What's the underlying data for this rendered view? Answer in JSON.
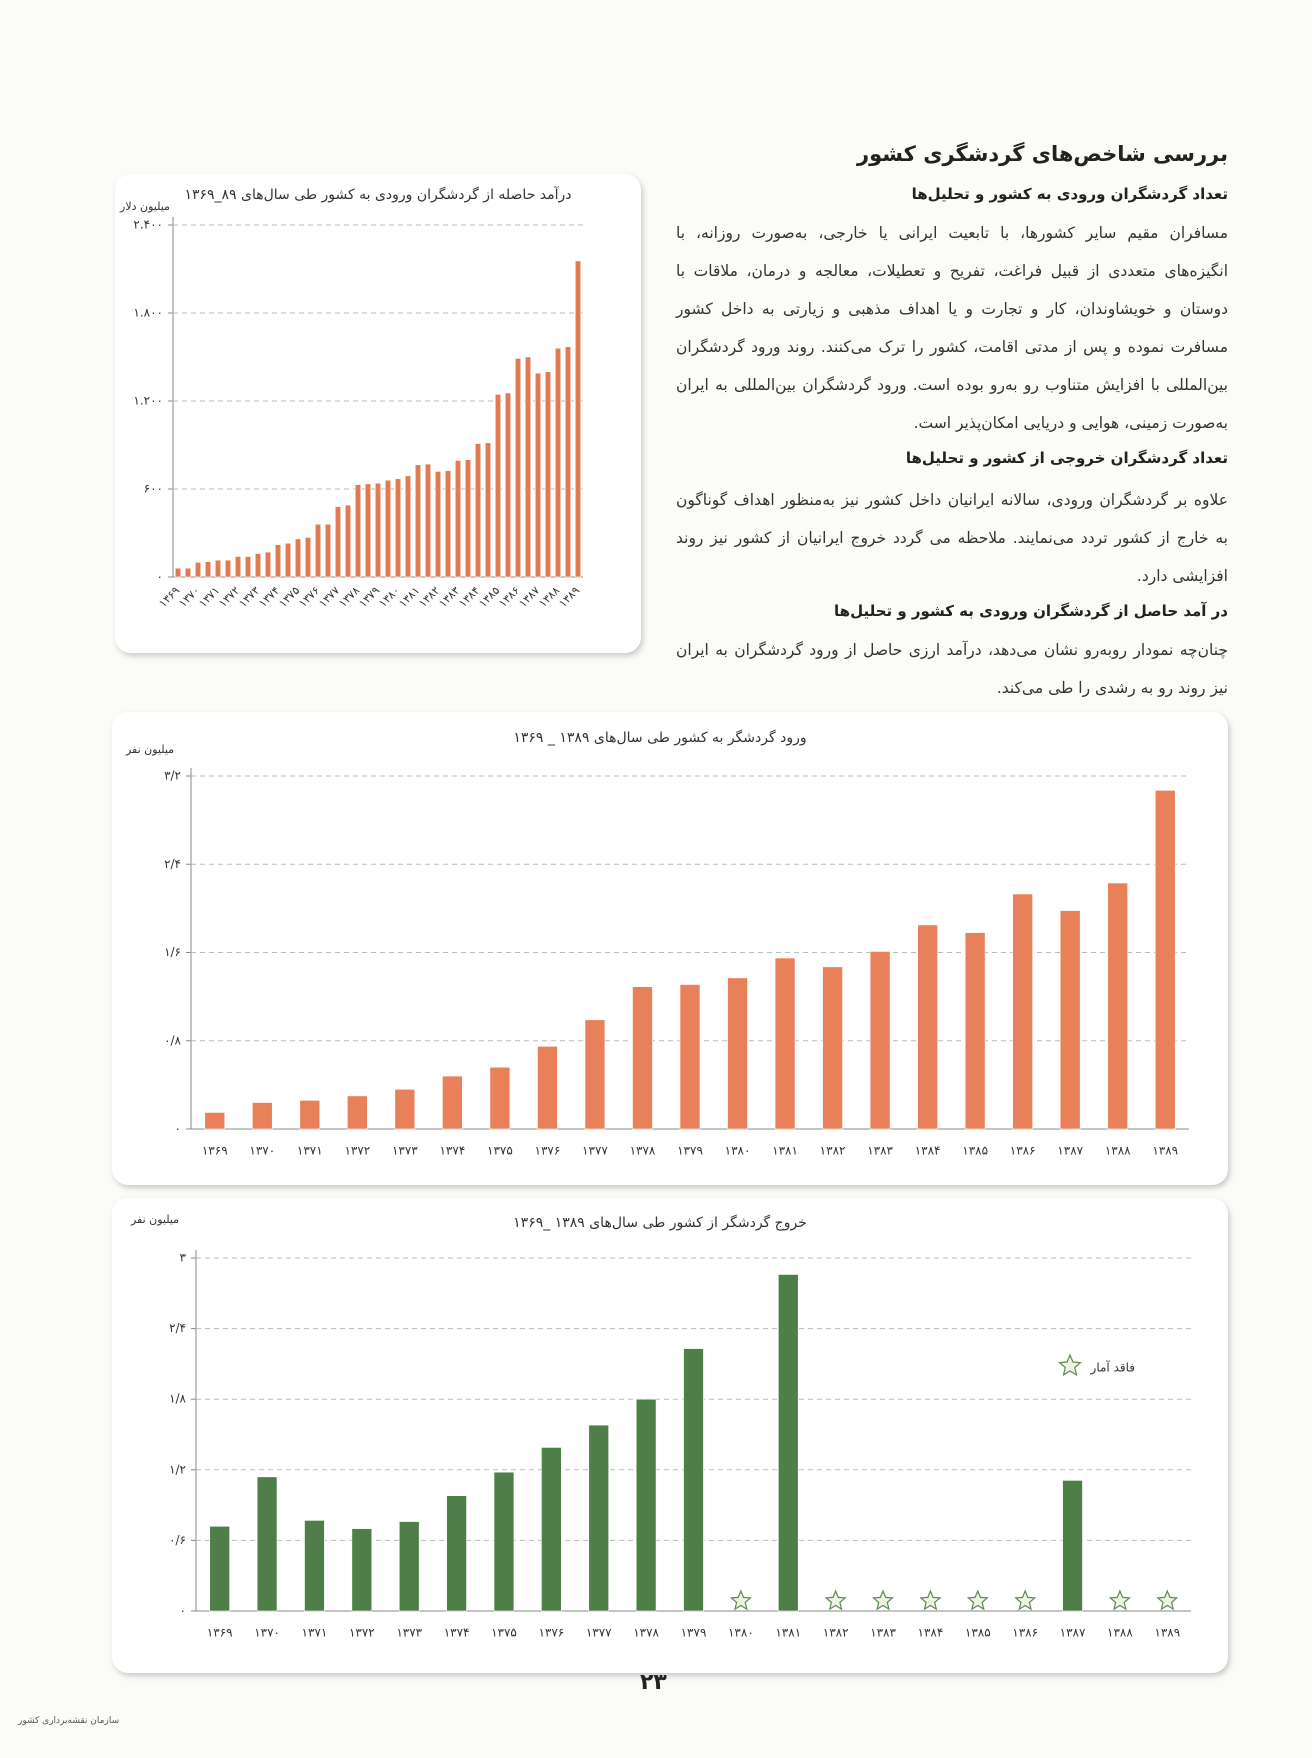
{
  "page": {
    "title": "بررسی شاخص‌های گردشگری کشور",
    "sections": [
      {
        "heading": "تعداد گردشگران ورودی به کشور و تحلیل‌ها",
        "body": "مسافران مقیم سایر کشورها، با تابعیت ایرانی یا خارجی، به‌صورت روزانه، با انگیزه‌های متعددی از قبیل فراغت، تفریح و تعطیلات، معالجه و درمان، ملاقات با دوستان و خویشاوندان، کار و تجارت و یا اهداف مذهبی و زیارتی به داخل کشور مسافرت نموده و پس از مدتی اقامت، کشور را ترک می‌کنند. روند ورود گردشگران بین‌المللی با افزایش متناوب رو به‌رو بوده است. ورود گردشگران بین‌المللی به ایران به‌صورت زمینی، هوایی و دریایی امکان‌پذیر است."
      },
      {
        "heading": "تعداد گردشگران خروجی از کشور و تحلیل‌ها",
        "body": "علاوه بر گردشگران ورودی، سالانه ایرانیان داخل کشور نیز به‌منظور اهداف گوناگون به خارج از کشور تردد می‌نمایند. ملاحظه می گردد خروج ایرانیان از کشور نیز روند افزایشی دارد."
      },
      {
        "heading": "در آمد حاصل از گردشگران ورودی به کشور و تحلیل‌ها",
        "body": "چنان‌چه نمودار روبه‌رو نشان می‌دهد، درآمد ارزی حاصل از ورود گردشگران به ایران نیز روند رو به رشدی را طی می‌کند."
      }
    ],
    "page_number": "۲۳",
    "logo_text": "سازمان نقشه‌برداری کشور"
  },
  "chart_data": [
    {
      "type": "bar",
      "title": "درآمد حاصله از گردشگران ورودی به کشور طی سال‌های ۸۹_۱۳۶۹",
      "y_unit": "میلیون دلار",
      "categories": [
        "۱۳۶۹",
        null,
        "۱۳۷۰",
        null,
        "۱۳۷۱",
        null,
        "۱۳۷۲",
        null,
        "۱۳۷۳",
        null,
        "۱۳۷۴",
        null,
        "۱۳۷۵",
        null,
        "۱۳۷۶",
        null,
        "۱۳۷۷",
        null,
        "۱۳۷۸",
        null,
        "۱۳۷۹",
        null,
        "۱۳۸۰",
        null,
        "۱۳۸۱",
        null,
        "۱۳۸۲",
        null,
        "۱۳۸۳",
        null,
        "۱۳۸۴",
        null,
        "۱۳۸۵",
        null,
        "۱۳۸۶",
        null,
        "۱۳۸۷",
        null,
        "۱۳۸۸",
        null,
        "۱۳۸۹"
      ],
      "values": [
        60,
        60,
        100,
        105,
        115,
        115,
        140,
        140,
        160,
        170,
        220,
        230,
        260,
        270,
        360,
        360,
        480,
        490,
        630,
        635,
        640,
        660,
        670,
        690,
        765,
        770,
        720,
        725,
        795,
        800,
        910,
        915,
        1245,
        1255,
        1490,
        1500,
        1390,
        1400,
        1560,
        1570,
        2155
      ],
      "color": "#e07a50",
      "ylim": [
        0,
        2400
      ],
      "yticks": [
        {
          "value": 0,
          "label": "۰"
        },
        {
          "value": 600,
          "label": "۶۰۰"
        },
        {
          "value": 1200,
          "label": "۱.۲۰۰"
        },
        {
          "value": 1800,
          "label": "۱.۸۰۰"
        },
        {
          "value": 2400,
          "label": "۲.۴۰۰"
        }
      ],
      "grid": true
    },
    {
      "type": "bar",
      "title": "ورود گردشگر به کشور طی سال‌های ۱۳۸۹ _ ۱۳۶۹",
      "y_unit": "میلیون نفر",
      "categories": [
        "۱۳۶۹",
        "۱۳۷۰",
        "۱۳۷۱",
        "۱۳۷۲",
        "۱۳۷۳",
        "۱۳۷۴",
        "۱۳۷۵",
        "۱۳۷۶",
        "۱۳۷۷",
        "۱۳۷۸",
        "۱۳۷۹",
        "۱۳۸۰",
        "۱۳۸۱",
        "۱۳۸۲",
        "۱۳۸۳",
        "۱۳۸۴",
        "۱۳۸۵",
        "۱۳۸۶",
        "۱۳۸۷",
        "۱۳۸۸",
        "۱۳۸۹"
      ],
      "values": [
        0.15,
        0.24,
        0.26,
        0.3,
        0.36,
        0.48,
        0.56,
        0.75,
        0.99,
        1.29,
        1.31,
        1.37,
        1.55,
        1.47,
        1.61,
        1.85,
        1.78,
        2.13,
        1.98,
        2.23,
        3.07
      ],
      "color": "#e8805a",
      "ylim": [
        0,
        3.2
      ],
      "yticks": [
        {
          "value": 0,
          "label": "۰"
        },
        {
          "value": 0.8,
          "label": "۰/۸"
        },
        {
          "value": 1.6,
          "label": "۱/۶"
        },
        {
          "value": 2.4,
          "label": "۲/۴"
        },
        {
          "value": 3.2,
          "label": "۳/۲"
        }
      ],
      "grid": true
    },
    {
      "type": "bar",
      "title": "خروج گردشگر از کشور طی سال‌های ۱۳۸۹ _۱۳۶۹",
      "y_unit": "میلیون نفر",
      "categories": [
        "۱۳۶۹",
        "۱۳۷۰",
        "۱۳۷۱",
        "۱۳۷۲",
        "۱۳۷۳",
        "۱۳۷۴",
        "۱۳۷۵",
        "۱۳۷۶",
        "۱۳۷۷",
        "۱۳۷۸",
        "۱۳۷۹",
        "۱۳۸۰",
        "۱۳۸۱",
        "۱۳۸۲",
        "۱۳۸۳",
        "۱۳۸۴",
        "۱۳۸۵",
        "۱۳۸۶",
        "۱۳۸۷",
        "۱۳۸۸",
        "۱۳۸۹"
      ],
      "values": [
        0.72,
        1.14,
        0.77,
        0.7,
        0.76,
        0.98,
        1.18,
        1.39,
        1.58,
        1.8,
        2.23,
        null,
        2.86,
        null,
        null,
        null,
        null,
        null,
        1.11,
        null,
        null
      ],
      "color": "#4f7f48",
      "annotation": "فاقد آمار",
      "ylim": [
        0,
        3
      ],
      "yticks": [
        {
          "value": 0,
          "label": "۰"
        },
        {
          "value": 0.6,
          "label": "۰/۶"
        },
        {
          "value": 1.2,
          "label": "۱/۲"
        },
        {
          "value": 1.8,
          "label": "۱/۸"
        },
        {
          "value": 2.4,
          "label": "۲/۴"
        },
        {
          "value": 3,
          "label": "۳"
        }
      ],
      "grid": true
    }
  ]
}
